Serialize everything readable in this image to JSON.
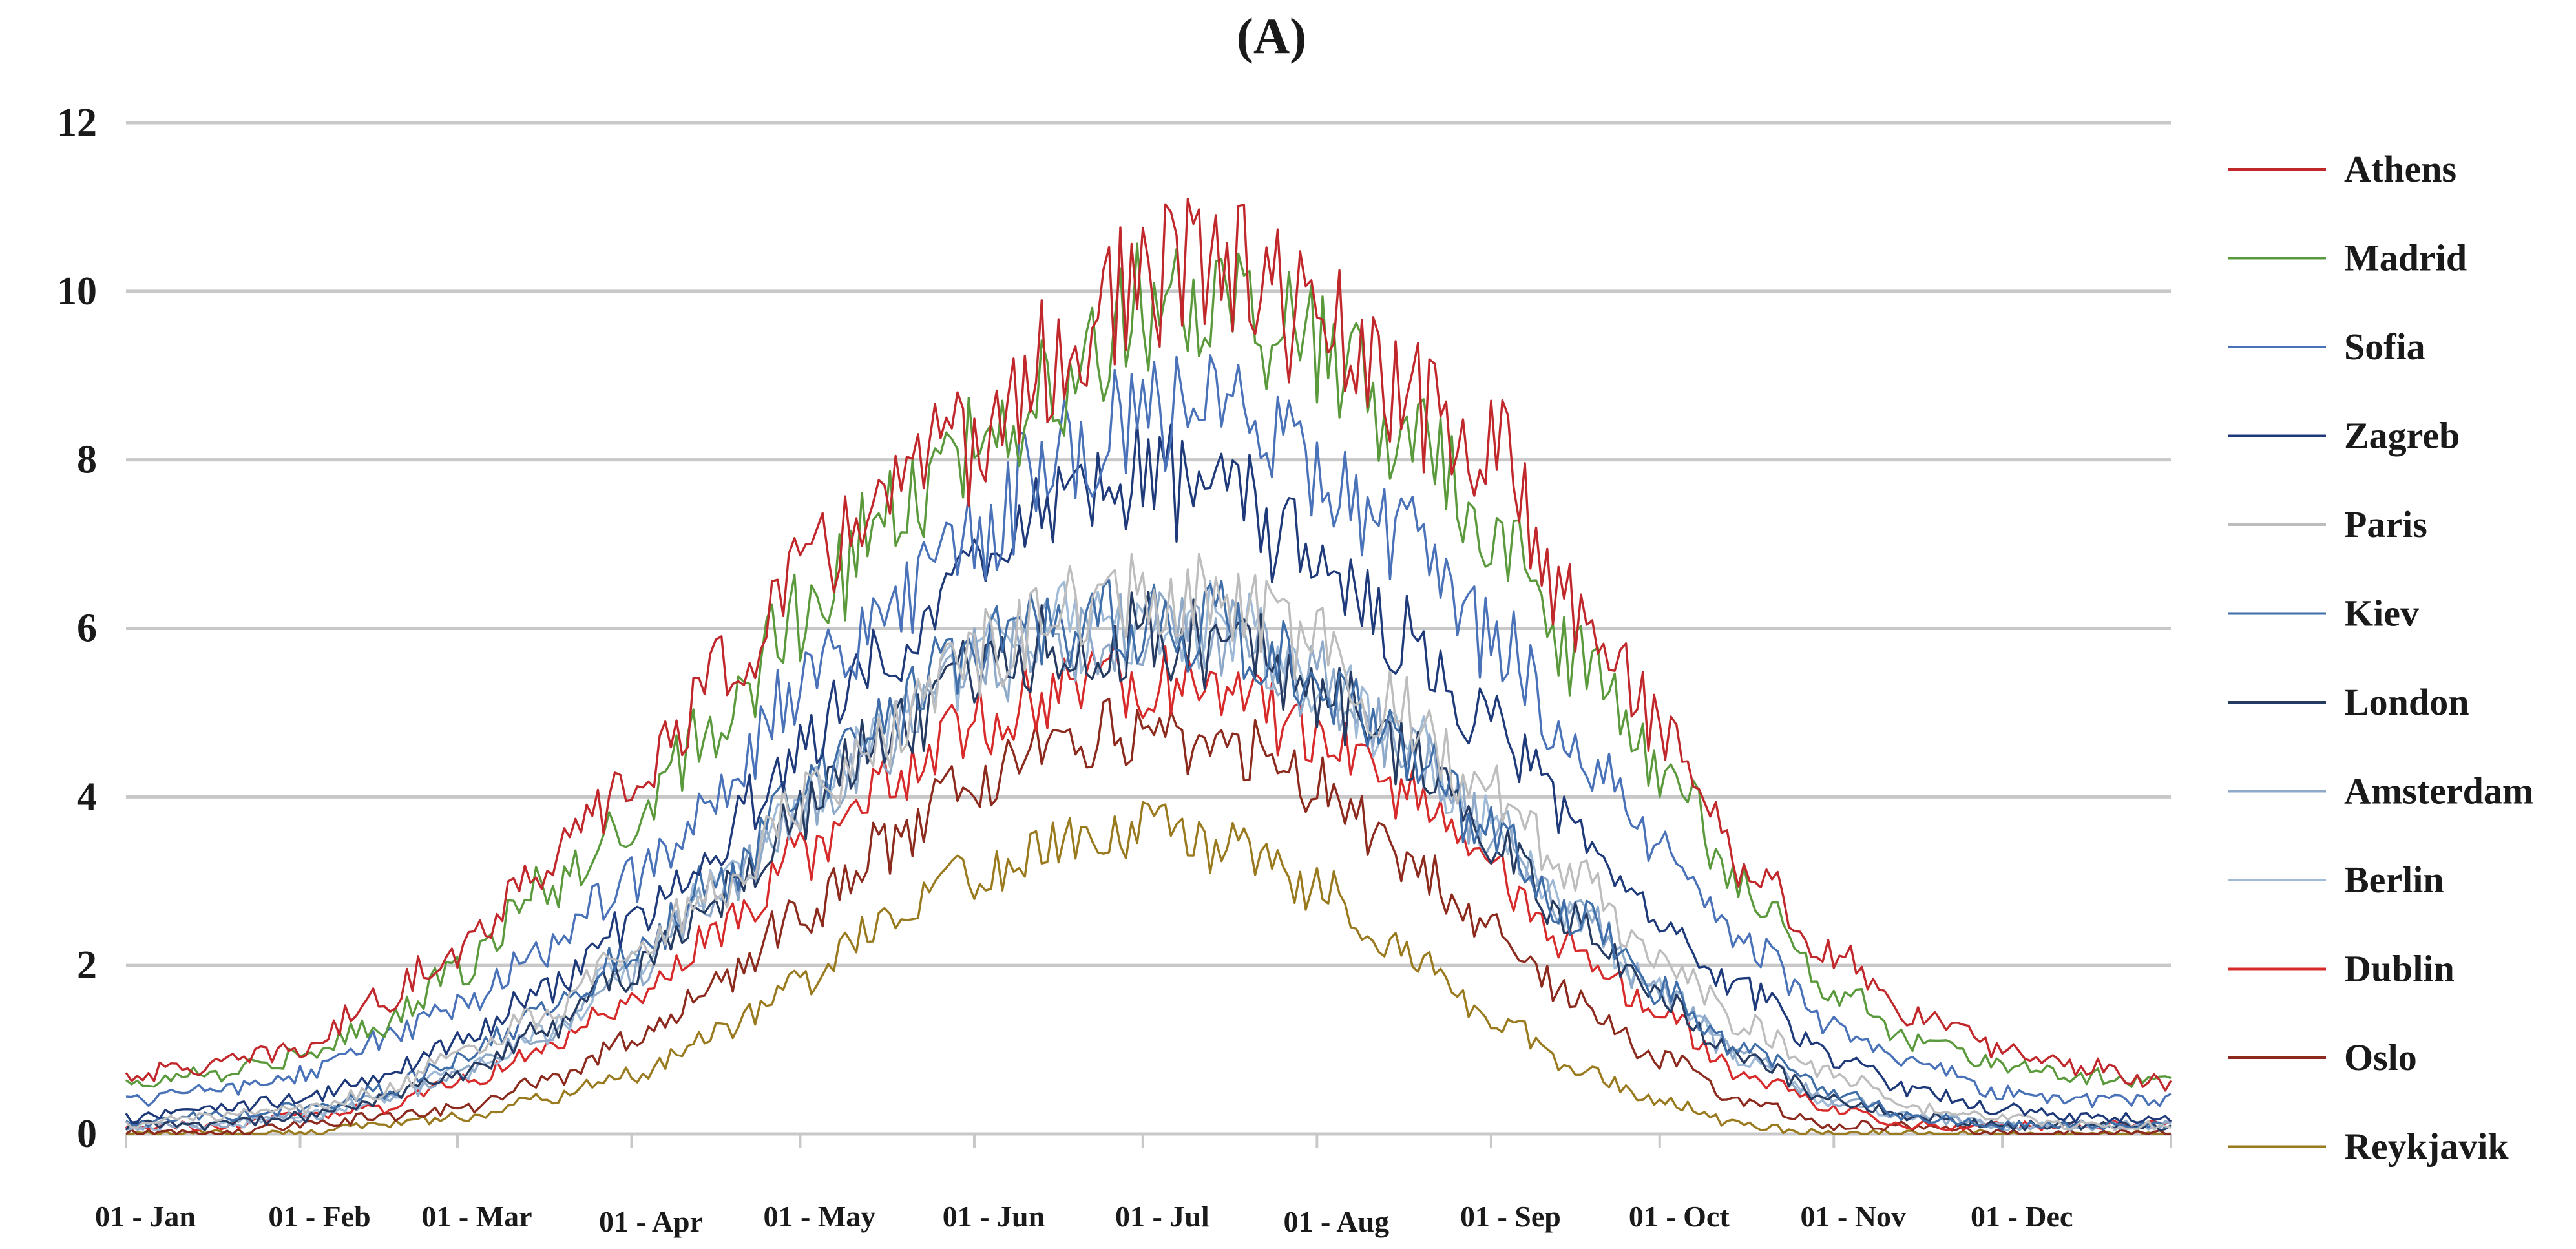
{
  "chart_data": {
    "type": "line",
    "title": "(A)",
    "xlabel": "",
    "ylabel": "",
    "ylim": [
      0,
      12
    ],
    "yticks": [
      0,
      2,
      4,
      6,
      8,
      10,
      12
    ],
    "ytick_labels": [
      "0",
      "2",
      "4",
      "6",
      "8",
      "10",
      "12"
    ],
    "grid": true,
    "legend_position": "right",
    "x_range_days": [
      1,
      365
    ],
    "x_ticks": [
      {
        "label": "01 - Jan",
        "day": 1
      },
      {
        "label": "01 - Feb",
        "day": 32
      },
      {
        "label": "01 - Mar",
        "day": 60
      },
      {
        "label": "01 - Apr",
        "day": 91
      },
      {
        "label": "01 - May",
        "day": 121
      },
      {
        "label": "01 - Jun",
        "day": 152
      },
      {
        "label": "01 - Jul",
        "day": 182
      },
      {
        "label": "01 - Aug",
        "day": 213
      },
      {
        "label": "01 - Sep",
        "day": 244
      },
      {
        "label": "01 - Oct",
        "day": 274
      },
      {
        "label": "01 - Nov",
        "day": 305
      },
      {
        "label": "01 - Dec",
        "day": 335
      }
    ],
    "series": [
      {
        "name": "Athens",
        "color": "#c0282c",
        "days": [
          1,
          15,
          32,
          46,
          60,
          75,
          91,
          106,
          121,
          136,
          152,
          167,
          182,
          197,
          213,
          228,
          244,
          259,
          274,
          289,
          305,
          320,
          335,
          350,
          365
        ],
        "values": [
          0.7,
          0.8,
          1.0,
          1.6,
          2.2,
          3.2,
          4.1,
          5.4,
          6.6,
          7.6,
          8.2,
          9.2,
          10.1,
          10.3,
          9.6,
          8.7,
          8.1,
          6.3,
          4.9,
          3.2,
          2.1,
          1.4,
          1.0,
          0.8,
          0.6
        ]
      },
      {
        "name": "Madrid",
        "color": "#5b9a3c",
        "days": [
          1,
          15,
          32,
          46,
          60,
          75,
          91,
          106,
          121,
          136,
          152,
          167,
          182,
          197,
          213,
          228,
          244,
          259,
          274,
          289,
          305,
          320,
          335,
          350,
          365
        ],
        "values": [
          0.6,
          0.7,
          0.9,
          1.3,
          1.9,
          2.9,
          3.7,
          4.9,
          6.1,
          7.2,
          8.1,
          9.0,
          9.9,
          9.8,
          9.3,
          8.3,
          7.3,
          5.6,
          4.4,
          2.9,
          1.7,
          1.1,
          0.8,
          0.7,
          0.6
        ]
      },
      {
        "name": "Sofia",
        "color": "#4a72b8",
        "days": [
          1,
          15,
          32,
          46,
          60,
          75,
          91,
          106,
          121,
          136,
          152,
          167,
          182,
          197,
          213,
          228,
          244,
          259,
          274,
          289,
          305,
          320,
          335,
          350,
          365
        ],
        "values": [
          0.4,
          0.5,
          0.7,
          1.1,
          1.5,
          2.2,
          3.0,
          4.1,
          5.3,
          6.1,
          7.1,
          8.1,
          8.5,
          8.6,
          7.9,
          7.1,
          5.9,
          4.6,
          3.4,
          2.3,
          1.3,
          0.8,
          0.5,
          0.4,
          0.4
        ]
      },
      {
        "name": "Zagreb",
        "color": "#1f3a7a",
        "days": [
          1,
          15,
          32,
          46,
          60,
          75,
          91,
          106,
          121,
          136,
          152,
          167,
          182,
          197,
          213,
          228,
          244,
          259,
          274,
          289,
          305,
          320,
          335,
          350,
          365
        ],
        "values": [
          0.2,
          0.3,
          0.4,
          0.7,
          1.1,
          1.7,
          2.5,
          3.5,
          4.6,
          5.6,
          6.5,
          7.3,
          7.8,
          7.5,
          6.9,
          6.0,
          4.9,
          3.7,
          2.6,
          1.7,
          0.9,
          0.5,
          0.3,
          0.2,
          0.2
        ]
      },
      {
        "name": "Paris",
        "color": "#bdbdbd",
        "days": [
          1,
          15,
          32,
          46,
          60,
          75,
          91,
          106,
          121,
          136,
          152,
          167,
          182,
          197,
          213,
          228,
          244,
          259,
          274,
          289,
          305,
          320,
          335,
          350,
          365
        ],
        "values": [
          0.1,
          0.2,
          0.3,
          0.5,
          0.9,
          1.4,
          2.1,
          2.9,
          3.9,
          4.8,
          5.7,
          6.2,
          6.4,
          6.3,
          5.8,
          5.0,
          4.0,
          3.0,
          2.1,
          1.3,
          0.7,
          0.3,
          0.2,
          0.1,
          0.1
        ]
      },
      {
        "name": "Kiev",
        "color": "#3f6ea8",
        "days": [
          1,
          15,
          32,
          46,
          60,
          75,
          91,
          106,
          121,
          136,
          152,
          167,
          182,
          197,
          213,
          228,
          244,
          259,
          274,
          289,
          305,
          320,
          335,
          350,
          365
        ],
        "values": [
          0.1,
          0.2,
          0.3,
          0.5,
          0.9,
          1.4,
          2.1,
          3.0,
          4.0,
          5.0,
          5.7,
          6.0,
          6.1,
          6.0,
          5.4,
          4.6,
          3.6,
          2.6,
          1.7,
          1.0,
          0.5,
          0.2,
          0.1,
          0.1,
          0.1
        ]
      },
      {
        "name": "London",
        "color": "#263b61",
        "days": [
          1,
          15,
          32,
          46,
          60,
          75,
          91,
          106,
          121,
          136,
          152,
          167,
          182,
          197,
          213,
          228,
          244,
          259,
          274,
          289,
          305,
          320,
          335,
          350,
          365
        ],
        "values": [
          0.1,
          0.1,
          0.2,
          0.4,
          0.7,
          1.2,
          1.9,
          2.8,
          3.8,
          4.7,
          5.4,
          5.8,
          5.9,
          5.8,
          5.3,
          4.5,
          3.5,
          2.5,
          1.6,
          0.9,
          0.4,
          0.2,
          0.1,
          0.1,
          0.1
        ]
      },
      {
        "name": "Amsterdam",
        "color": "#8fa9c9",
        "days": [
          1,
          15,
          32,
          46,
          60,
          75,
          91,
          106,
          121,
          136,
          152,
          167,
          182,
          197,
          213,
          228,
          244,
          259,
          274,
          289,
          305,
          320,
          335,
          350,
          365
        ],
        "values": [
          0.1,
          0.1,
          0.2,
          0.4,
          0.7,
          1.2,
          1.9,
          2.8,
          3.8,
          4.7,
          5.5,
          5.9,
          6.0,
          5.9,
          5.4,
          4.6,
          3.6,
          2.6,
          1.7,
          0.9,
          0.4,
          0.2,
          0.1,
          0.1,
          0.1
        ]
      },
      {
        "name": "Berlin",
        "color": "#9fbad6",
        "days": [
          1,
          15,
          32,
          46,
          60,
          75,
          91,
          106,
          121,
          136,
          152,
          167,
          182,
          197,
          213,
          228,
          244,
          259,
          274,
          289,
          305,
          320,
          335,
          350,
          365
        ],
        "values": [
          0.1,
          0.1,
          0.2,
          0.4,
          0.7,
          1.2,
          2.0,
          2.9,
          3.9,
          4.8,
          5.6,
          6.0,
          6.1,
          6.0,
          5.5,
          4.7,
          3.7,
          2.6,
          1.7,
          0.9,
          0.4,
          0.2,
          0.1,
          0.1,
          0.1
        ]
      },
      {
        "name": "Dublin",
        "color": "#d72a2a",
        "days": [
          1,
          15,
          32,
          46,
          60,
          75,
          91,
          106,
          121,
          136,
          152,
          167,
          182,
          197,
          213,
          228,
          244,
          259,
          274,
          289,
          305,
          320,
          335,
          350,
          365
        ],
        "values": [
          0.1,
          0.1,
          0.2,
          0.3,
          0.6,
          1.0,
          1.6,
          2.4,
          3.3,
          4.1,
          4.9,
          5.3,
          5.4,
          5.3,
          4.7,
          4.0,
          3.1,
          2.2,
          1.4,
          0.7,
          0.3,
          0.1,
          0.1,
          0.1,
          0.1
        ]
      },
      {
        "name": "Oslo",
        "color": "#8c2a1e",
        "days": [
          1,
          15,
          32,
          46,
          60,
          75,
          91,
          106,
          121,
          136,
          152,
          167,
          182,
          197,
          213,
          228,
          244,
          259,
          274,
          289,
          305,
          320,
          335,
          350,
          365
        ],
        "values": [
          0.0,
          0.0,
          0.1,
          0.2,
          0.3,
          0.6,
          1.1,
          1.8,
          2.6,
          3.4,
          4.2,
          4.6,
          4.8,
          4.6,
          4.1,
          3.3,
          2.4,
          1.6,
          0.9,
          0.4,
          0.1,
          0.1,
          0.0,
          0.0,
          0.0
        ]
      },
      {
        "name": "Reykjavik",
        "color": "#9a7a1e",
        "days": [
          1,
          15,
          32,
          46,
          60,
          75,
          91,
          106,
          121,
          136,
          152,
          167,
          182,
          197,
          213,
          228,
          244,
          259,
          274,
          289,
          305,
          320,
          335,
          350,
          365
        ],
        "values": [
          0.0,
          0.0,
          0.0,
          0.1,
          0.2,
          0.4,
          0.7,
          1.2,
          1.8,
          2.5,
          3.1,
          3.5,
          3.6,
          3.4,
          2.9,
          2.2,
          1.4,
          0.8,
          0.4,
          0.1,
          0.0,
          0.0,
          0.0,
          0.0,
          0.0
        ]
      }
    ]
  }
}
